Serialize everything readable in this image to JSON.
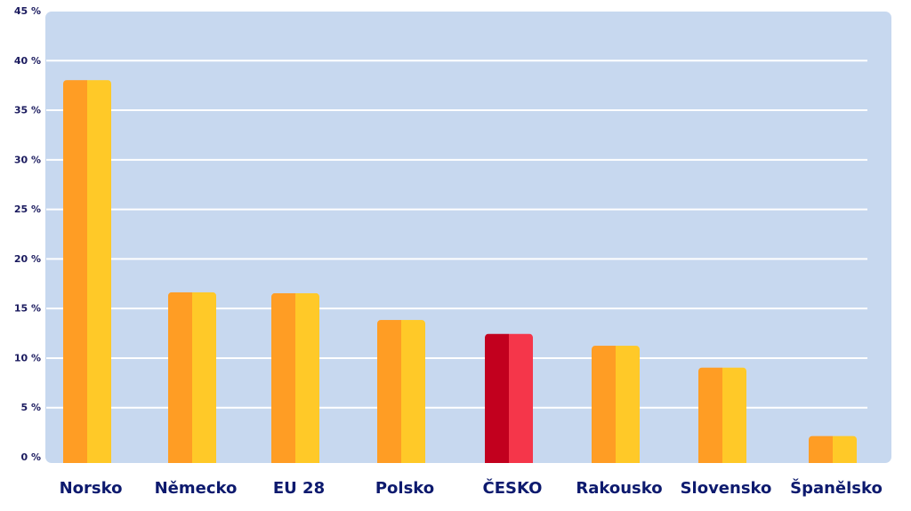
{
  "chart_data": {
    "type": "bar",
    "title": "",
    "xlabel": "",
    "ylabel": "",
    "ylim": [
      0,
      45
    ],
    "y_ticks": [
      0,
      5,
      10,
      15,
      20,
      25,
      30,
      35,
      40,
      45
    ],
    "y_tick_suffix": " %",
    "grid": true,
    "categories": [
      "Norsko",
      "Německo",
      "EU 28",
      "Polsko",
      "ČESKO",
      "Rakousko",
      "Slovensko",
      "Španělsko"
    ],
    "values": [
      38,
      16.6,
      16.5,
      13.8,
      12.4,
      11.2,
      9.0,
      2.1
    ],
    "highlight_index": 4,
    "colors": {
      "plot_background": "#c7d8ef",
      "gridline": "#ffffff",
      "bar_left": "#ff9d24",
      "bar_right": "#ffc928",
      "highlight_left": "#c2001e",
      "highlight_right": "#f5364a",
      "tick_text": "#1a1a5e",
      "category_text": "#0d1a6e"
    }
  }
}
